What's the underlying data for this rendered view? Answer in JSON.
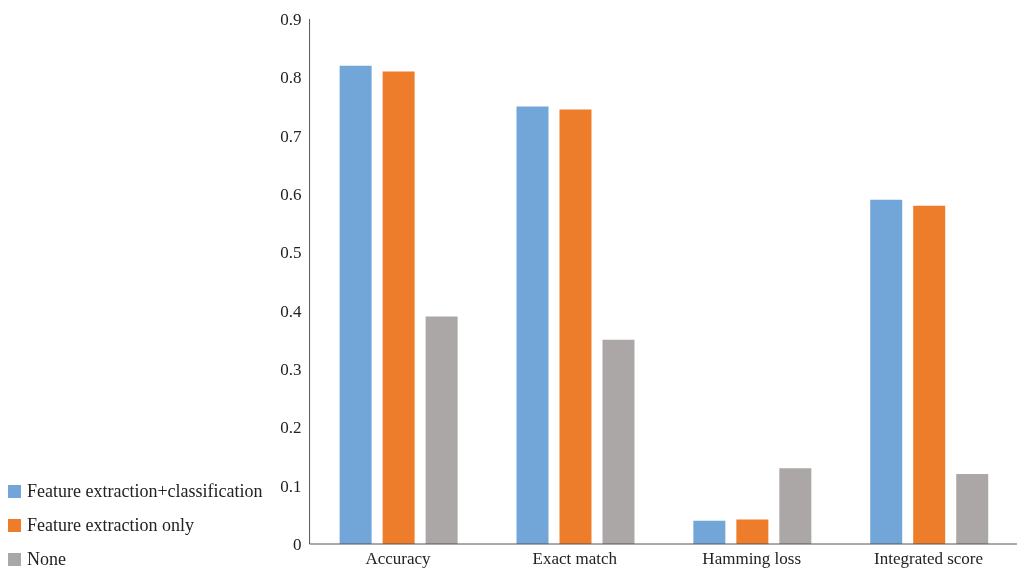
{
  "chart_data": {
    "type": "bar",
    "categories": [
      "Accuracy",
      "Exact match",
      "Hamming loss",
      "Integrated score"
    ],
    "series": [
      {
        "name": "Feature extraction+classification",
        "color": "#72a6d8",
        "values": [
          0.82,
          0.75,
          0.04,
          0.59
        ]
      },
      {
        "name": "Feature extraction only",
        "color": "#ed7d2b",
        "values": [
          0.81,
          0.745,
          0.042,
          0.58
        ]
      },
      {
        "name": "None",
        "color": "#aba7a6",
        "values": [
          0.39,
          0.35,
          0.13,
          0.12
        ]
      }
    ],
    "ylim": [
      0,
      0.9
    ],
    "yticks": [
      0,
      0.1,
      0.2,
      0.3,
      0.4,
      0.5,
      0.6,
      0.7,
      0.8,
      0.9
    ],
    "grid": false,
    "legend": "bottom left"
  }
}
